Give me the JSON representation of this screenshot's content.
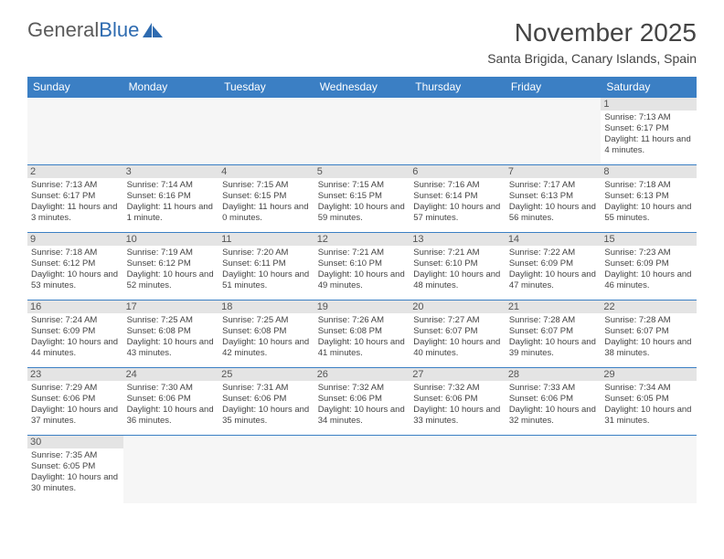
{
  "logo": {
    "part1": "General",
    "part2": "Blue"
  },
  "title": "November 2025",
  "location": "Santa Brigida, Canary Islands, Spain",
  "header_bg": "#3b7fc4",
  "daynum_bg": "#e4e4e4",
  "weekdays": [
    "Sunday",
    "Monday",
    "Tuesday",
    "Wednesday",
    "Thursday",
    "Friday",
    "Saturday"
  ],
  "weeks": [
    [
      null,
      null,
      null,
      null,
      null,
      null,
      {
        "n": "1",
        "sr": "7:13 AM",
        "ss": "6:17 PM",
        "dl": "11 hours and 4 minutes."
      }
    ],
    [
      {
        "n": "2",
        "sr": "7:13 AM",
        "ss": "6:17 PM",
        "dl": "11 hours and 3 minutes."
      },
      {
        "n": "3",
        "sr": "7:14 AM",
        "ss": "6:16 PM",
        "dl": "11 hours and 1 minute."
      },
      {
        "n": "4",
        "sr": "7:15 AM",
        "ss": "6:15 PM",
        "dl": "11 hours and 0 minutes."
      },
      {
        "n": "5",
        "sr": "7:15 AM",
        "ss": "6:15 PM",
        "dl": "10 hours and 59 minutes."
      },
      {
        "n": "6",
        "sr": "7:16 AM",
        "ss": "6:14 PM",
        "dl": "10 hours and 57 minutes."
      },
      {
        "n": "7",
        "sr": "7:17 AM",
        "ss": "6:13 PM",
        "dl": "10 hours and 56 minutes."
      },
      {
        "n": "8",
        "sr": "7:18 AM",
        "ss": "6:13 PM",
        "dl": "10 hours and 55 minutes."
      }
    ],
    [
      {
        "n": "9",
        "sr": "7:18 AM",
        "ss": "6:12 PM",
        "dl": "10 hours and 53 minutes."
      },
      {
        "n": "10",
        "sr": "7:19 AM",
        "ss": "6:12 PM",
        "dl": "10 hours and 52 minutes."
      },
      {
        "n": "11",
        "sr": "7:20 AM",
        "ss": "6:11 PM",
        "dl": "10 hours and 51 minutes."
      },
      {
        "n": "12",
        "sr": "7:21 AM",
        "ss": "6:10 PM",
        "dl": "10 hours and 49 minutes."
      },
      {
        "n": "13",
        "sr": "7:21 AM",
        "ss": "6:10 PM",
        "dl": "10 hours and 48 minutes."
      },
      {
        "n": "14",
        "sr": "7:22 AM",
        "ss": "6:09 PM",
        "dl": "10 hours and 47 minutes."
      },
      {
        "n": "15",
        "sr": "7:23 AM",
        "ss": "6:09 PM",
        "dl": "10 hours and 46 minutes."
      }
    ],
    [
      {
        "n": "16",
        "sr": "7:24 AM",
        "ss": "6:09 PM",
        "dl": "10 hours and 44 minutes."
      },
      {
        "n": "17",
        "sr": "7:25 AM",
        "ss": "6:08 PM",
        "dl": "10 hours and 43 minutes."
      },
      {
        "n": "18",
        "sr": "7:25 AM",
        "ss": "6:08 PM",
        "dl": "10 hours and 42 minutes."
      },
      {
        "n": "19",
        "sr": "7:26 AM",
        "ss": "6:08 PM",
        "dl": "10 hours and 41 minutes."
      },
      {
        "n": "20",
        "sr": "7:27 AM",
        "ss": "6:07 PM",
        "dl": "10 hours and 40 minutes."
      },
      {
        "n": "21",
        "sr": "7:28 AM",
        "ss": "6:07 PM",
        "dl": "10 hours and 39 minutes."
      },
      {
        "n": "22",
        "sr": "7:28 AM",
        "ss": "6:07 PM",
        "dl": "10 hours and 38 minutes."
      }
    ],
    [
      {
        "n": "23",
        "sr": "7:29 AM",
        "ss": "6:06 PM",
        "dl": "10 hours and 37 minutes."
      },
      {
        "n": "24",
        "sr": "7:30 AM",
        "ss": "6:06 PM",
        "dl": "10 hours and 36 minutes."
      },
      {
        "n": "25",
        "sr": "7:31 AM",
        "ss": "6:06 PM",
        "dl": "10 hours and 35 minutes."
      },
      {
        "n": "26",
        "sr": "7:32 AM",
        "ss": "6:06 PM",
        "dl": "10 hours and 34 minutes."
      },
      {
        "n": "27",
        "sr": "7:32 AM",
        "ss": "6:06 PM",
        "dl": "10 hours and 33 minutes."
      },
      {
        "n": "28",
        "sr": "7:33 AM",
        "ss": "6:06 PM",
        "dl": "10 hours and 32 minutes."
      },
      {
        "n": "29",
        "sr": "7:34 AM",
        "ss": "6:05 PM",
        "dl": "10 hours and 31 minutes."
      }
    ],
    [
      {
        "n": "30",
        "sr": "7:35 AM",
        "ss": "6:05 PM",
        "dl": "10 hours and 30 minutes."
      },
      null,
      null,
      null,
      null,
      null,
      null
    ]
  ],
  "labels": {
    "sunrise": "Sunrise:",
    "sunset": "Sunset:",
    "daylight": "Daylight:"
  }
}
